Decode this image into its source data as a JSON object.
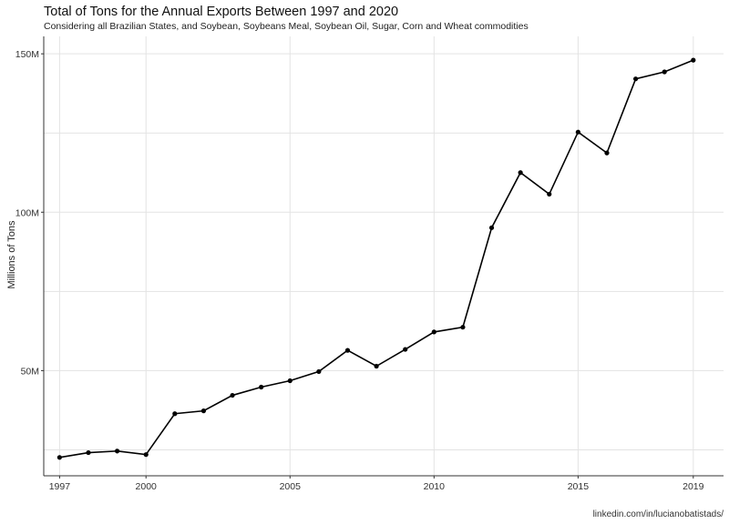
{
  "chart_data": {
    "type": "line",
    "title": "Total of Tons for the Annual Exports Between 1997 and 2020",
    "subtitle": "Considering all Brazilian States, and Soybean, Soybeans Meal, Soybean Oil, Sugar, Corn and Wheat commodities",
    "xlabel": "",
    "ylabel": "Millions of Tons",
    "caption": "linkedin.com/in/lucianobatistads/",
    "x_ticks": [
      1997,
      2000,
      2005,
      2010,
      2015,
      2019
    ],
    "y_ticks": [
      {
        "value": 50,
        "label": "50M"
      },
      {
        "value": 100,
        "label": "100M"
      },
      {
        "value": 150,
        "label": "150M"
      }
    ],
    "xlim": [
      1996.45,
      2020.05
    ],
    "ylim": [
      16.8,
      155.5
    ],
    "grid": true,
    "series": [
      {
        "x": [
          1997,
          1998,
          1999,
          2000,
          2001,
          2002,
          2003,
          2004,
          2005,
          2006,
          2007,
          2008,
          2009,
          2010,
          2011,
          2012,
          2013,
          2014,
          2015,
          2016,
          2017,
          2018,
          2019
        ],
        "values": [
          22.6,
          24.1,
          24.6,
          23.5,
          36.4,
          37.3,
          42.2,
          44.8,
          46.8,
          49.7,
          56.4,
          51.4,
          56.7,
          62.2,
          63.7,
          95.1,
          112.5,
          105.7,
          125.3,
          118.7,
          142.1,
          144.3,
          148.0
        ]
      }
    ]
  }
}
